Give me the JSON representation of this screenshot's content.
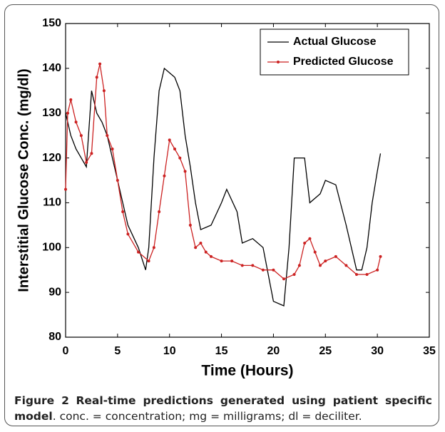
{
  "chart_data": {
    "type": "line",
    "xlabel": "Time (Hours)",
    "ylabel": "Interstitial Glucose Conc. (mg/dl)",
    "xlim": [
      0,
      35
    ],
    "xticks": [
      0,
      5,
      10,
      15,
      20,
      25,
      30,
      35
    ],
    "ylim": [
      80,
      150
    ],
    "yticks": [
      80,
      90,
      100,
      110,
      120,
      130,
      140,
      150
    ],
    "legend": "upper right",
    "series": [
      {
        "name": "Actual Glucose",
        "color": "#000000",
        "marker": false,
        "x": [
          0,
          0.5,
          1,
          1.5,
          2,
          2.5,
          3,
          3.5,
          4,
          4.5,
          5,
          5.5,
          6,
          7,
          7.7,
          8,
          8.5,
          9,
          9.5,
          10,
          10.5,
          11,
          11.5,
          12,
          12.5,
          13,
          14,
          15,
          15.5,
          16.5,
          17,
          18,
          19,
          20,
          21,
          21.5,
          22,
          23,
          23.5,
          24.5,
          25,
          26,
          27,
          28,
          28.5,
          29,
          29.5,
          30,
          30.3
        ],
        "values": [
          130,
          125,
          122,
          120,
          118,
          135,
          130,
          128,
          125,
          120,
          115,
          110,
          105,
          100,
          95,
          100,
          120,
          135,
          140,
          139,
          138,
          135,
          125,
          118,
          110,
          104,
          105,
          110,
          113,
          108,
          101,
          102,
          100,
          88,
          87,
          100,
          120,
          120,
          110,
          112,
          115,
          114,
          105,
          95,
          95,
          100,
          110,
          117,
          121
        ]
      },
      {
        "name": "Predicted Glucose",
        "color": "#cc2222",
        "marker": true,
        "x": [
          0,
          0.2,
          0.5,
          1,
          1.5,
          2,
          2.5,
          3,
          3.3,
          3.7,
          4,
          4.5,
          5,
          5.5,
          6,
          7,
          8,
          8.5,
          9,
          9.5,
          10,
          10.5,
          11,
          11.5,
          12,
          12.5,
          13,
          13.5,
          14,
          15,
          16,
          17,
          18,
          19,
          20,
          21,
          22,
          22.5,
          23,
          23.5,
          24,
          24.5,
          25,
          26,
          27,
          28,
          29,
          30,
          30.3
        ],
        "values": [
          113,
          130,
          133,
          128,
          125,
          119,
          121,
          138,
          141,
          135,
          125,
          122,
          115,
          108,
          103,
          99,
          97,
          100,
          108,
          116,
          124,
          122,
          120,
          117,
          105,
          100,
          101,
          99,
          98,
          97,
          97,
          96,
          96,
          95,
          95,
          93,
          94,
          96,
          101,
          102,
          99,
          96,
          97,
          98,
          96,
          94,
          94,
          95,
          98
        ]
      }
    ]
  },
  "caption": {
    "label": "Figure 2",
    "title": "Real-time predictions generated using patient specific model",
    "text": ". conc. = concentration; mg = milligrams; dl = deciliter."
  }
}
